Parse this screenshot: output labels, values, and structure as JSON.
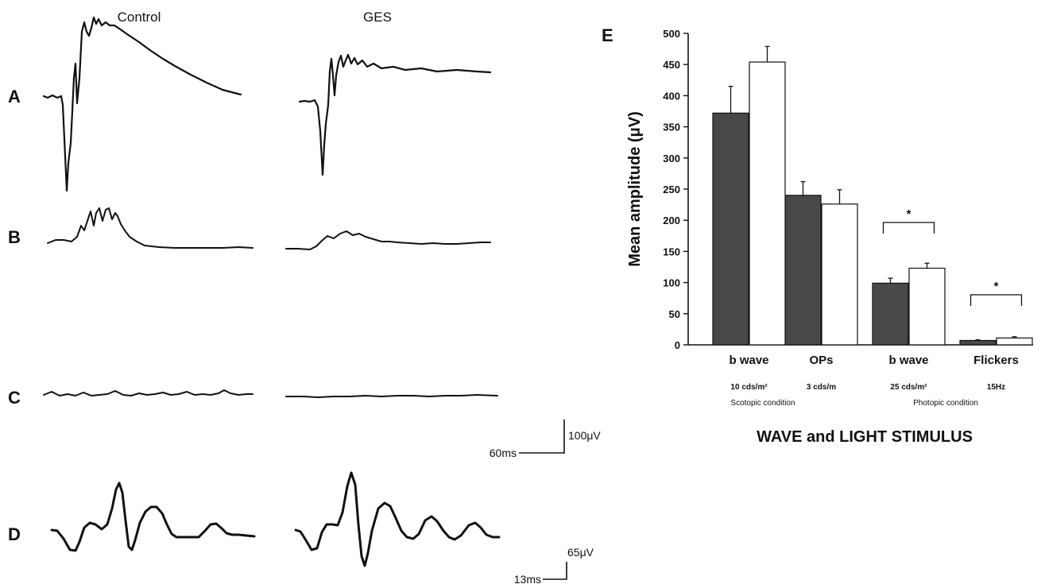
{
  "traces_panel": {
    "column_titles": [
      "Control",
      "GES"
    ],
    "row_labels": [
      "A",
      "B",
      "C",
      "D"
    ],
    "scale_bar_1": {
      "amplitude": "100μV",
      "time": "60ms"
    },
    "scale_bar_2": {
      "amplitude": "65μV",
      "time": "13ms"
    }
  },
  "chart_data": {
    "type": "bar",
    "panel_label": "E",
    "categories": [
      "b wave",
      "OPs",
      "b wave",
      "Flickers"
    ],
    "category_stimuli": [
      "10 cds/m²",
      "3 cds/m",
      "25 cds/m²",
      "15Hz"
    ],
    "conditions": [
      "Scotopic condition",
      "Photopic condition"
    ],
    "series": [
      {
        "values": [
          372,
          240,
          99,
          7
        ],
        "errors": [
          43,
          22,
          8,
          1
        ],
        "color": "#484848"
      },
      {
        "values": [
          454,
          226,
          123,
          11
        ],
        "errors": [
          25,
          23,
          8,
          2
        ],
        "color": "#ffffff"
      }
    ],
    "significance": [
      {
        "category_index": 2,
        "label": "*"
      },
      {
        "category_index": 3,
        "label": "*"
      }
    ],
    "ylabel": "Mean amplitude (μV)",
    "xlabel": "WAVE and LIGHT STIMULUS",
    "ylim": [
      0,
      500
    ],
    "yticks": [
      0,
      50,
      100,
      150,
      200,
      250,
      300,
      350,
      400,
      450,
      500
    ]
  }
}
